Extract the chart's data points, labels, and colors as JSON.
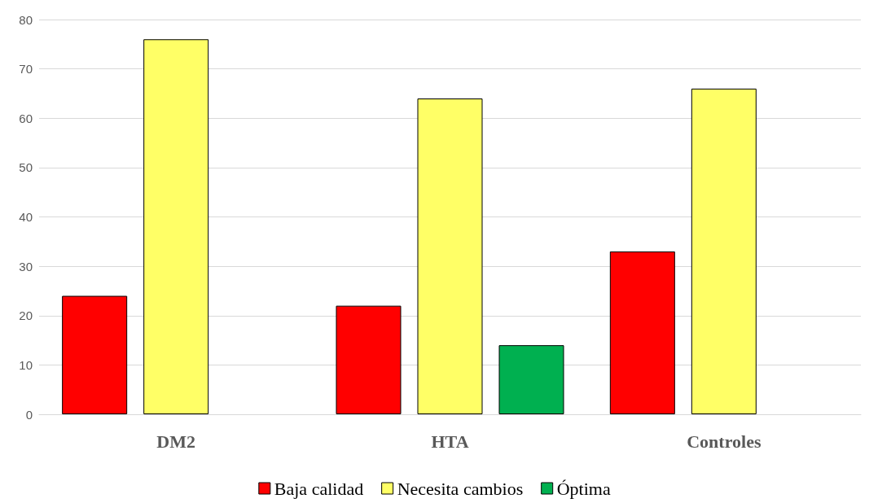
{
  "chart_data": {
    "type": "bar",
    "categories": [
      "DM2",
      "HTA",
      "Controles"
    ],
    "series": [
      {
        "name": "Baja calidad",
        "color": "#ff0000",
        "values": [
          24,
          22,
          33
        ]
      },
      {
        "name": "Necesita cambios",
        "color": "#ffff66",
        "values": [
          76,
          64,
          66
        ]
      },
      {
        "name": "Óptima",
        "color": "#00b050",
        "values": [
          null,
          14,
          null
        ]
      }
    ],
    "ylim": [
      0,
      80
    ],
    "yticks": [
      0,
      10,
      20,
      30,
      40,
      50,
      60,
      70,
      80
    ],
    "grid": "y",
    "legend": "bottom"
  }
}
